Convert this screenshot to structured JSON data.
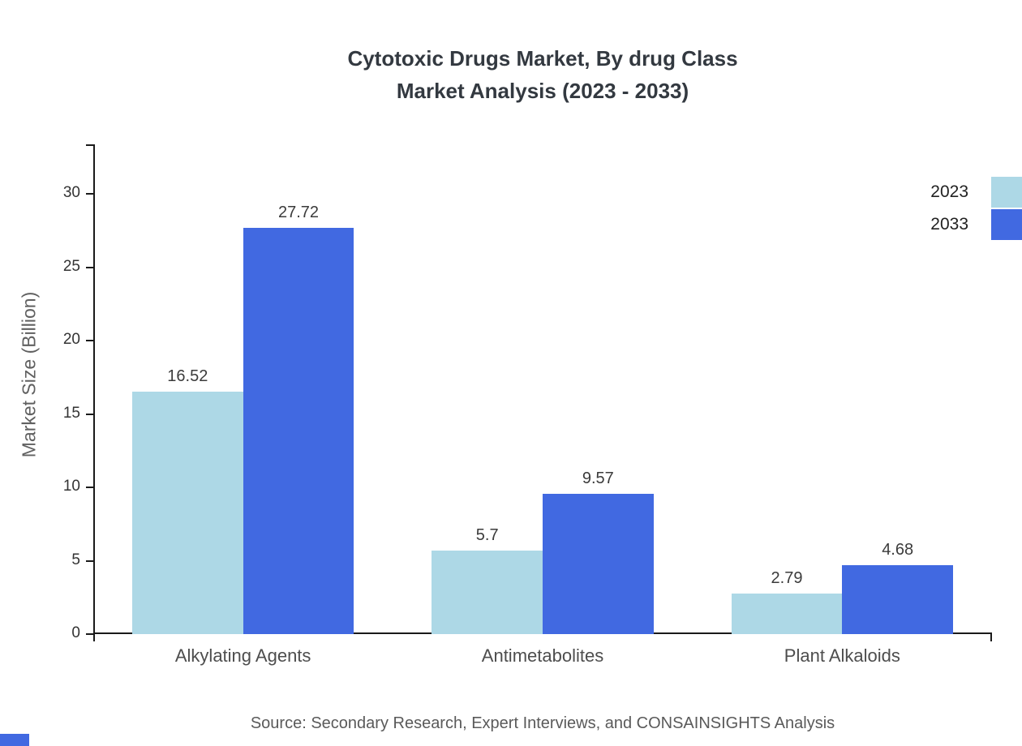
{
  "title": {
    "line1": "Cytotoxic Drugs Market, By drug Class",
    "line2": "Market Analysis (2023 - 2033)"
  },
  "source": "Source: Secondary Research, Expert Interviews, and CONSAINSIGHTS Analysis",
  "chart_data": {
    "type": "bar",
    "title": "Cytotoxic Drugs Market, By drug Class Market Analysis (2023 - 2033)",
    "categories": [
      "Alkylating Agents",
      "Antimetabolites",
      "Plant Alkaloids"
    ],
    "series": [
      {
        "name": "2023",
        "color": "#ADD8E6",
        "values": [
          16.52,
          5.7,
          2.79
        ]
      },
      {
        "name": "2033",
        "color": "#4169E1",
        "values": [
          27.72,
          9.57,
          4.68
        ]
      }
    ],
    "xlabel": "",
    "ylabel": "Market Size (Billion)",
    "ylim": [
      0,
      33.4
    ],
    "yticks": [
      0,
      5,
      10,
      15,
      20,
      25,
      30
    ],
    "grid": false,
    "legend_position": "top-right",
    "value_labels": [
      "16.52",
      "27.72",
      "5.7",
      "9.57",
      "2.79",
      "4.68"
    ]
  },
  "colors": {
    "series_2023": "#ADD8E6",
    "series_2033": "#4169E1",
    "axis": "#1a1a1a",
    "title": "#333940",
    "category_label": "#4d4d4d",
    "source": "#5a5a5a"
  }
}
